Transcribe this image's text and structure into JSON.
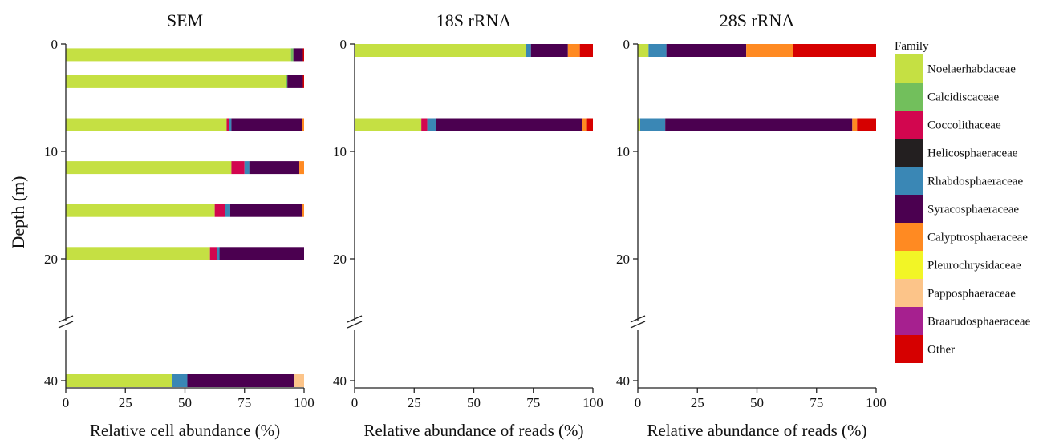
{
  "legend": {
    "title": "Family",
    "placement": "right",
    "entries": [
      {
        "name": "Noelaerhabdaceae",
        "color": "#c5e043"
      },
      {
        "name": "Calcidiscaceae",
        "color": "#72bf5c"
      },
      {
        "name": "Coccolithaceae",
        "color": "#d2064f"
      },
      {
        "name": "Helicosphaeraceae",
        "color": "#231f20"
      },
      {
        "name": "Rhabdosphaeraceae",
        "color": "#3a87b5"
      },
      {
        "name": "Syracosphaeraceae",
        "color": "#4b0050"
      },
      {
        "name": "Calyptrosphaeraceae",
        "color": "#ff8a22"
      },
      {
        "name": "Pleurochrysidaceae",
        "color": "#f2f526"
      },
      {
        "name": "Papposphaeraceae",
        "color": "#fcc489"
      },
      {
        "name": "Braarudosphaeraceae",
        "color": "#a6208f"
      },
      {
        "name": "Other",
        "color": "#d60000"
      }
    ]
  },
  "y_axis_title": "Depth (m)",
  "chart_data": [
    {
      "type": "bar",
      "orientation": "horizontal-stacked",
      "title": "SEM",
      "xlabel": "Relative cell abundance (%)",
      "ylabel": "Depth (m)",
      "xlim": [
        0,
        100
      ],
      "xticks": [
        "0",
        "25",
        "50",
        "75",
        "100"
      ],
      "yticks": [
        "0",
        "10",
        "20",
        "40"
      ],
      "axis_break": "between 20 and 40",
      "grid": false,
      "bars": [
        {
          "depth": 1,
          "segments": {
            "Noelaerhabdaceae": 94.5,
            "Calcidiscaceae": 1.0,
            "Syracosphaeraceae": 4.0,
            "Other": 0.5
          }
        },
        {
          "depth": 3.5,
          "segments": {
            "Noelaerhabdaceae": 92.5,
            "Calcidiscaceae": 0.5,
            "Syracosphaeraceae": 6.5,
            "Other": 0.5
          }
        },
        {
          "depth": 7.5,
          "segments": {
            "Noelaerhabdaceae": 67.5,
            "Rhabdosphaeraceae": 1.0,
            "Syracosphaeraceae": 29.5,
            "Calyptrosphaeraceae": 1.0,
            "Coccolithaceae": 1.0
          }
        },
        {
          "depth": 11.5,
          "segments": {
            "Noelaerhabdaceae": 69.5,
            "Rhabdosphaeraceae": 2.0,
            "Syracosphaeraceae": 21.0,
            "Calyptrosphaeraceae": 2.0,
            "Coccolithaceae": 5.5
          }
        },
        {
          "depth": 15.5,
          "segments": {
            "Noelaerhabdaceae": 62.5,
            "Rhabdosphaeraceae": 2.0,
            "Syracosphaeraceae": 30.0,
            "Calyptrosphaeraceae": 1.0,
            "Coccolithaceae": 4.5
          }
        },
        {
          "depth": 19.5,
          "segments": {
            "Noelaerhabdaceae": 60.5,
            "Rhabdosphaeraceae": 1.0,
            "Syracosphaeraceae": 35.5,
            "Coccolithaceae": 3.0
          }
        },
        {
          "depth": 40,
          "segments": {
            "Noelaerhabdaceae": 44.5,
            "Rhabdosphaeraceae": 6.5,
            "Syracosphaeraceae": 45.0,
            "Papposphaeraceae": 4.0
          }
        }
      ]
    },
    {
      "type": "bar",
      "orientation": "horizontal-stacked",
      "title": "18S rRNA",
      "xlabel": "Relative abundance of reads (%)",
      "xlim": [
        0,
        100
      ],
      "xticks": [
        "0",
        "25",
        "50",
        "75",
        "100"
      ],
      "yticks": [
        "0",
        "10",
        "20",
        "40"
      ],
      "axis_break": "between 20 and 40",
      "grid": false,
      "bars": [
        {
          "depth": 0.5,
          "segments": {
            "Noelaerhabdaceae": 72.0,
            "Rhabdosphaeraceae": 2.0,
            "Syracosphaeraceae": 15.5,
            "Calyptrosphaeraceae": 5.0,
            "Other": 5.5
          }
        },
        {
          "depth": 7.5,
          "segments": {
            "Noelaerhabdaceae": 28.0,
            "Rhabdosphaeraceae": 3.5,
            "Syracosphaeraceae": 61.5,
            "Calyptrosphaeraceae": 2.0,
            "Coccolithaceae": 2.5,
            "Other": 2.5
          }
        }
      ]
    },
    {
      "type": "bar",
      "orientation": "horizontal-stacked",
      "title": "28S rRNA",
      "xlabel": "Relative abundance of reads (%)",
      "xlim": [
        0,
        100
      ],
      "xticks": [
        "0",
        "25",
        "50",
        "75",
        "100"
      ],
      "yticks": [
        "0",
        "10",
        "20",
        "40"
      ],
      "axis_break": "between 20 and 40",
      "grid": false,
      "bars": [
        {
          "depth": 0.5,
          "segments": {
            "Noelaerhabdaceae": 4.5,
            "Rhabdosphaeraceae": 7.5,
            "Syracosphaeraceae": 33.5,
            "Calyptrosphaeraceae": 19.5,
            "Other": 35.0
          }
        },
        {
          "depth": 7.5,
          "segments": {
            "Noelaerhabdaceae": 1.0,
            "Rhabdosphaeraceae": 10.5,
            "Syracosphaeraceae": 78.5,
            "Calyptrosphaeraceae": 2.0,
            "Other": 8.0
          }
        }
      ]
    }
  ]
}
